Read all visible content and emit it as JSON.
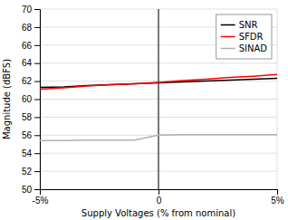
{
  "chart_data": {
    "type": "line",
    "xlabel": "Supply Voltages (% from nominal)",
    "ylabel": "Magnitude (dBFS)",
    "xlim": [
      -5,
      5
    ],
    "ylim": [
      50,
      70
    ],
    "xticks": [
      {
        "value": -5,
        "label": "-5%"
      },
      0,
      {
        "value": 5,
        "label": "5%"
      }
    ],
    "yticks": [
      50,
      52,
      54,
      56,
      58,
      60,
      62,
      64,
      66,
      68,
      70
    ],
    "vline": 0,
    "grid": true,
    "legend": "upper right",
    "series": [
      {
        "name": "SNR",
        "color": "#000000",
        "x": [
          -5,
          -4,
          -3,
          -2,
          -1,
          0,
          0.5,
          1,
          2,
          3,
          4,
          5
        ],
        "values": [
          61.3,
          61.35,
          61.5,
          61.6,
          61.7,
          61.8,
          61.85,
          61.9,
          62.0,
          62.1,
          62.2,
          62.3
        ]
      },
      {
        "name": "SFDR",
        "color": "#ff0000",
        "x": [
          -5,
          -4,
          -3,
          -2,
          -1,
          0,
          0.5,
          1,
          2,
          3,
          4,
          5
        ],
        "values": [
          61.1,
          61.25,
          61.45,
          61.6,
          61.7,
          61.85,
          61.95,
          62.05,
          62.2,
          62.4,
          62.55,
          62.75
        ]
      },
      {
        "name": "SINAD",
        "color": "#b0b0b0",
        "x": [
          -5,
          -4,
          -3,
          -2,
          -1,
          0,
          1,
          2,
          3,
          4,
          5
        ],
        "values": [
          55.4,
          55.4,
          55.45,
          55.45,
          55.45,
          56.0,
          56.05,
          56.05,
          56.05,
          56.05,
          56.05
        ]
      }
    ]
  }
}
